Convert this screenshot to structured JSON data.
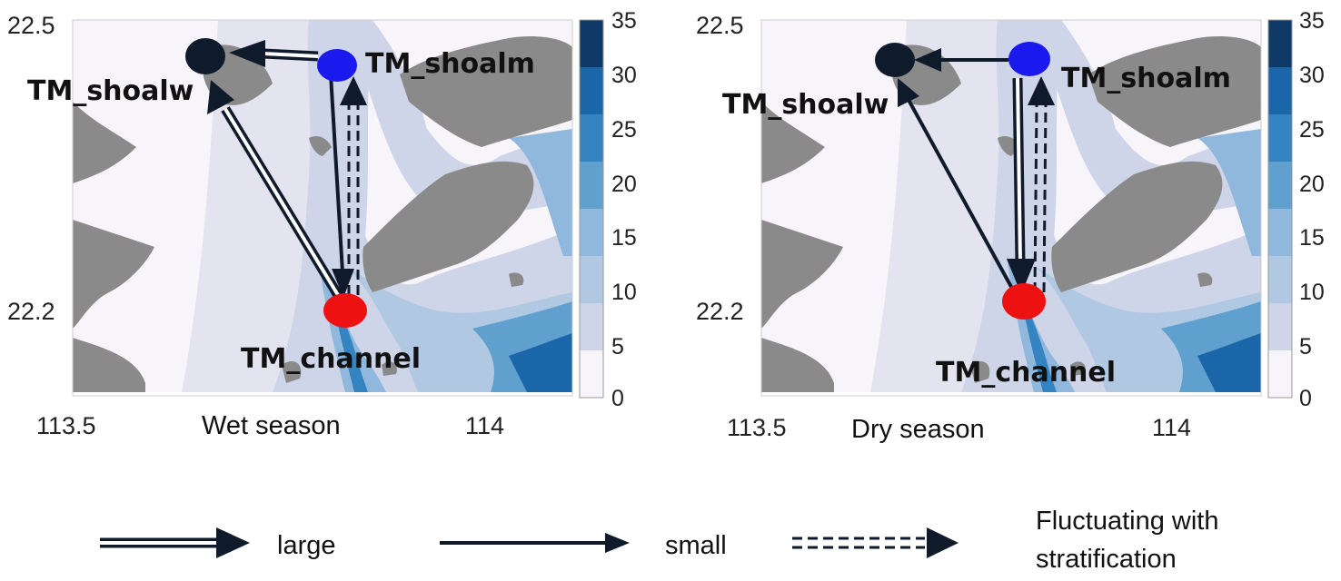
{
  "panels": [
    {
      "id": "wet",
      "season_label": "Wet season",
      "lat_ticks": [
        "22.5",
        "22.2"
      ],
      "lon_ticks": [
        "113.5",
        "114"
      ],
      "colorbar_ticks": [
        "35",
        "30",
        "25",
        "20",
        "15",
        "10",
        "5",
        "0"
      ],
      "sites": {
        "shoalw": "TM_shoalw",
        "shoalm": "TM_shoalm",
        "channel": "TM_channel"
      },
      "arrows": [
        {
          "from": "TM_shoalm",
          "to": "TM_shoalw",
          "type": "large"
        },
        {
          "from": "TM_channel",
          "to": "TM_shoalw",
          "type": "large"
        },
        {
          "from": "TM_shoalm",
          "to": "TM_channel",
          "type": "small"
        },
        {
          "from": "TM_channel",
          "to": "TM_shoalm",
          "type": "fluctuating"
        }
      ]
    },
    {
      "id": "dry",
      "season_label": "Dry season",
      "lat_ticks": [
        "22.5",
        "22.2"
      ],
      "lon_ticks": [
        "113.5",
        "114"
      ],
      "colorbar_ticks": [
        "35",
        "30",
        "25",
        "20",
        "15",
        "10",
        "5",
        "0"
      ],
      "sites": {
        "shoalw": "TM_shoalw",
        "shoalm": "TM_shoalm",
        "channel": "TM_channel"
      },
      "arrows": [
        {
          "from": "TM_shoalm",
          "to": "TM_shoalw",
          "type": "small"
        },
        {
          "from": "TM_channel",
          "to": "TM_shoalw",
          "type": "small"
        },
        {
          "from": "TM_shoalm",
          "to": "TM_channel",
          "type": "large"
        },
        {
          "from": "TM_channel",
          "to": "TM_shoalm",
          "type": "fluctuating"
        }
      ]
    }
  ],
  "legend": {
    "large": "large",
    "small": "small",
    "fluct_line1": "Fluctuating with",
    "fluct_line2": "stratification"
  },
  "colors": {
    "land": "#8a8a8a",
    "site_shoalw": "#0f1a2a",
    "site_shoalm": "#1a1aee",
    "site_channel": "#ee1111",
    "arrow": "#0f1a2a",
    "depth_scale": [
      "#f7f4fa",
      "#e4e3f0",
      "#cfd5e8",
      "#b0c8e2",
      "#8fb8dc",
      "#5fa0cf",
      "#3384c0",
      "#1a66a8",
      "#0f3a68"
    ]
  }
}
